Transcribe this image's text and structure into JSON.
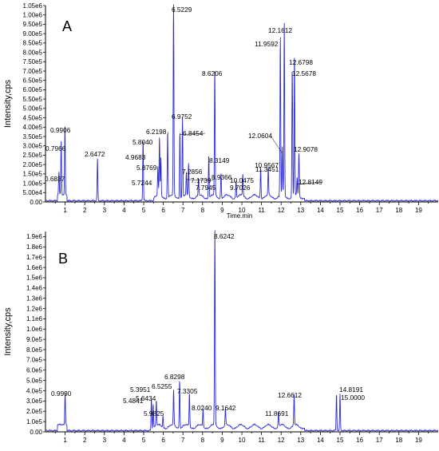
{
  "chart_data": [
    {
      "type": "line",
      "panel_label": "A",
      "ylabel": "Intensity,cps",
      "xlabel": "Time.min",
      "xlim": [
        0,
        20
      ],
      "ylim": [
        0,
        1050000
      ],
      "color": "#2b2bd6",
      "x_ticks": [
        "1",
        "2",
        "3",
        "4",
        "5",
        "6",
        "7",
        "8",
        "9",
        "10",
        "11",
        "12",
        "13",
        "14",
        "15",
        "16",
        "17",
        "18",
        "19"
      ],
      "y_ticks": [
        {
          "v": 0,
          "label": "0.00"
        },
        {
          "v": 50000,
          "label": "5.00e4"
        },
        {
          "v": 100000,
          "label": "1.00e5"
        },
        {
          "v": 150000,
          "label": "1.50e5"
        },
        {
          "v": 200000,
          "label": "2.00e5"
        },
        {
          "v": 250000,
          "label": "2.50e5"
        },
        {
          "v": 300000,
          "label": "3.00e5"
        },
        {
          "v": 350000,
          "label": "3.50e5"
        },
        {
          "v": 400000,
          "label": "4.00e5"
        },
        {
          "v": 450000,
          "label": "4.50e5"
        },
        {
          "v": 500000,
          "label": "5.00e5"
        },
        {
          "v": 550000,
          "label": "5.50e5"
        },
        {
          "v": 600000,
          "label": "6.00e5"
        },
        {
          "v": 650000,
          "label": "6.50e5"
        },
        {
          "v": 700000,
          "label": "7.00e5"
        },
        {
          "v": 750000,
          "label": "7.50e5"
        },
        {
          "v": 800000,
          "label": "8.00e5"
        },
        {
          "v": 850000,
          "label": "8.50e5"
        },
        {
          "v": 900000,
          "label": "9.00e5"
        },
        {
          "v": 950000,
          "label": "9.50e5"
        },
        {
          "v": 1000000,
          "label": "1.00e6"
        },
        {
          "v": 1050000,
          "label": "1.05e6"
        }
      ],
      "peaks": [
        {
          "t": 0.6837,
          "y": 125000,
          "label": "0.6837"
        },
        {
          "t": 0.7966,
          "y": 290000,
          "label": "0.7966"
        },
        {
          "t": 0.9906,
          "y": 365000,
          "label": "0.9906"
        },
        {
          "t": 2.6472,
          "y": 225000,
          "label": "2.6472"
        },
        {
          "t": 4.9683,
          "y": 335000,
          "label": "4.9683"
        },
        {
          "t": 5.7244,
          "y": 150000,
          "label": "5.7244"
        },
        {
          "t": 5.804,
          "y": 310000,
          "label": "5.8040"
        },
        {
          "t": 5.8769,
          "y": 205000,
          "label": "5.8769"
        },
        {
          "t": 6.2198,
          "y": 355000,
          "label": "6.2198"
        },
        {
          "t": 6.5229,
          "y": 1060000,
          "label": "6.5229"
        },
        {
          "t": 6.8454,
          "y": 360000,
          "label": "6.8454"
        },
        {
          "t": 6.9752,
          "y": 425000,
          "label": "6.9752"
        },
        {
          "t": 7.1739,
          "y": 120000,
          "label": "7.1739"
        },
        {
          "t": 7.2856,
          "y": 175000,
          "label": "7.2856"
        },
        {
          "t": 7.7945,
          "y": 90000,
          "label": "7.7945"
        },
        {
          "t": 8.3149,
          "y": 225000,
          "label": "8.3149"
        },
        {
          "t": 8.6206,
          "y": 680000,
          "label": "8.6206"
        },
        {
          "t": 8.9366,
          "y": 130000,
          "label": "8.9366"
        },
        {
          "t": 9.7026,
          "y": 90000,
          "label": "9.7026"
        },
        {
          "t": 10.0475,
          "y": 115000,
          "label": "10.0475"
        },
        {
          "t": 10.9567,
          "y": 165000,
          "label": "10.9567"
        },
        {
          "t": 11.3451,
          "y": 145000,
          "label": "11.3451"
        },
        {
          "t": 11.9592,
          "y": 860000,
          "label": "11.9592"
        },
        {
          "t": 12.0604,
          "y": 260000,
          "label": "12.0604"
        },
        {
          "t": 12.1612,
          "y": 925000,
          "label": "12.1612"
        },
        {
          "t": 12.5678,
          "y": 700000,
          "label": "12.5678"
        },
        {
          "t": 12.6798,
          "y": 760000,
          "label": "12.6798"
        },
        {
          "t": 12.8149,
          "y": 95000,
          "label": "12.8149"
        },
        {
          "t": 12.9078,
          "y": 240000,
          "label": "12.9078"
        }
      ]
    },
    {
      "type": "line",
      "panel_label": "B",
      "ylabel": "Intensity,cps",
      "xlabel": "",
      "xlim": [
        0,
        20
      ],
      "ylim": [
        0,
        1950000
      ],
      "color": "#2b2bd6",
      "x_ticks": [
        "1",
        "2",
        "3",
        "4",
        "5",
        "6",
        "7",
        "8",
        "9",
        "10",
        "11",
        "12",
        "13",
        "14",
        "15",
        "16",
        "17",
        "18",
        "19"
      ],
      "y_ticks": [
        {
          "v": 0,
          "label": "0.00"
        },
        {
          "v": 100000,
          "label": "1.0e5"
        },
        {
          "v": 200000,
          "label": "2.0e5"
        },
        {
          "v": 300000,
          "label": "3.0e5"
        },
        {
          "v": 400000,
          "label": "4.0e5"
        },
        {
          "v": 500000,
          "label": "5.0e5"
        },
        {
          "v": 600000,
          "label": "6.0e5"
        },
        {
          "v": 700000,
          "label": "7.0e5"
        },
        {
          "v": 800000,
          "label": "8.0e5"
        },
        {
          "v": 900000,
          "label": "9.0e5"
        },
        {
          "v": 1000000,
          "label": "1.0e6"
        },
        {
          "v": 1100000,
          "label": "1.1e6"
        },
        {
          "v": 1200000,
          "label": "1.2e6"
        },
        {
          "v": 1300000,
          "label": "1.3e6"
        },
        {
          "v": 1400000,
          "label": "1.4e6"
        },
        {
          "v": 1500000,
          "label": "1.5e6"
        },
        {
          "v": 1600000,
          "label": "1.6e6"
        },
        {
          "v": 1700000,
          "label": "1.7e6"
        },
        {
          "v": 1800000,
          "label": "1.8e6"
        },
        {
          "v": 1900000,
          "label": "1.9e6"
        }
      ],
      "peaks": [
        {
          "t": 0.999,
          "y": 305000,
          "label": "0.9990"
        },
        {
          "t": 5.3951,
          "y": 320000,
          "label": "5.3951"
        },
        {
          "t": 5.4841,
          "y": 255000,
          "label": "5.4841"
        },
        {
          "t": 5.6434,
          "y": 250000,
          "label": "5.6434"
        },
        {
          "t": 5.9825,
          "y": 110000,
          "label": "5.9825"
        },
        {
          "t": 6.5255,
          "y": 340000,
          "label": "6.5255"
        },
        {
          "t": 6.8298,
          "y": 470000,
          "label": "6.8298"
        },
        {
          "t": 7.3305,
          "y": 330000,
          "label": "7.3305"
        },
        {
          "t": 8.024,
          "y": 165000,
          "label": "8.0240"
        },
        {
          "t": 8.6242,
          "y": 1930000,
          "label": "8.6242"
        },
        {
          "t": 9.1642,
          "y": 165000,
          "label": "9.1642"
        },
        {
          "t": 11.8691,
          "y": 145000,
          "label": "11.8691"
        },
        {
          "t": 12.6612,
          "y": 300000,
          "label": "12.6612"
        },
        {
          "t": 14.8191,
          "y": 360000,
          "label": "14.8191"
        },
        {
          "t": 15.0,
          "y": 350000,
          "label": "15.0000"
        }
      ]
    }
  ]
}
